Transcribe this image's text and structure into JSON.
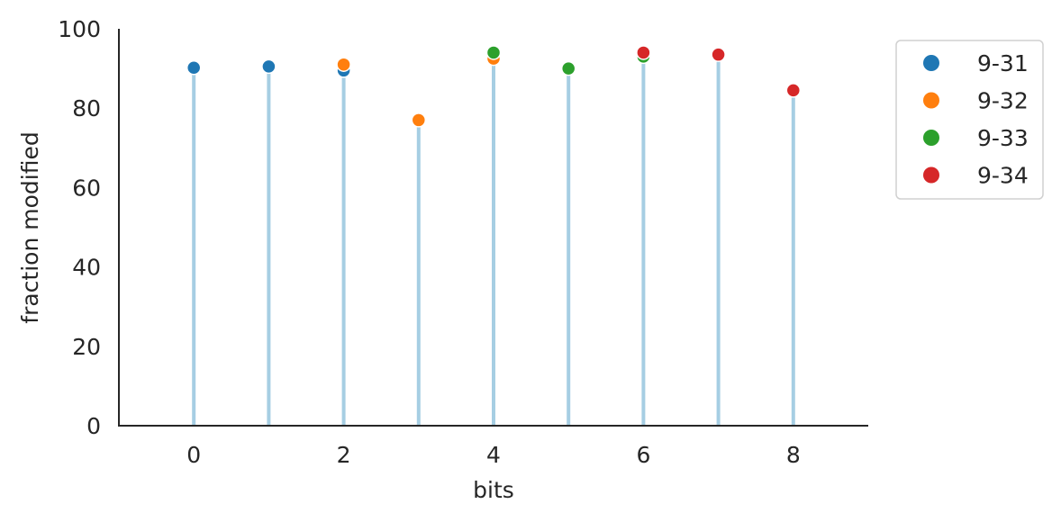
{
  "chart_data": {
    "type": "scatter",
    "xlabel": "bits",
    "ylabel": "fraction modified",
    "xlim": [
      -1,
      9
    ],
    "ylim": [
      0,
      100
    ],
    "x_ticks": [
      "0",
      "2",
      "4",
      "6",
      "8"
    ],
    "y_ticks": [
      "0",
      "20",
      "40",
      "60",
      "80",
      "100"
    ],
    "stems": {
      "color": "#a6cee3",
      "x": [
        0,
        1,
        2,
        3,
        4,
        5,
        6,
        7,
        8
      ],
      "top": [
        90,
        90.5,
        90.5,
        77,
        93,
        90,
        93,
        93.5,
        84.5
      ]
    },
    "series": [
      {
        "name": "9-31",
        "color": "#1f77b4",
        "x": [
          0,
          1,
          2
        ],
        "y": [
          90.2,
          90.5,
          89.5
        ]
      },
      {
        "name": "9-32",
        "color": "#ff7f0e",
        "x": [
          2,
          3,
          4
        ],
        "y": [
          91,
          77,
          92.5
        ]
      },
      {
        "name": "9-33",
        "color": "#2ca02c",
        "x": [
          4,
          5,
          6
        ],
        "y": [
          94,
          90,
          93
        ]
      },
      {
        "name": "9-34",
        "color": "#d62728",
        "x": [
          6,
          7,
          8
        ],
        "y": [
          94,
          93.5,
          84.5
        ]
      }
    ],
    "legend_position": "outside-right",
    "grid": false
  }
}
